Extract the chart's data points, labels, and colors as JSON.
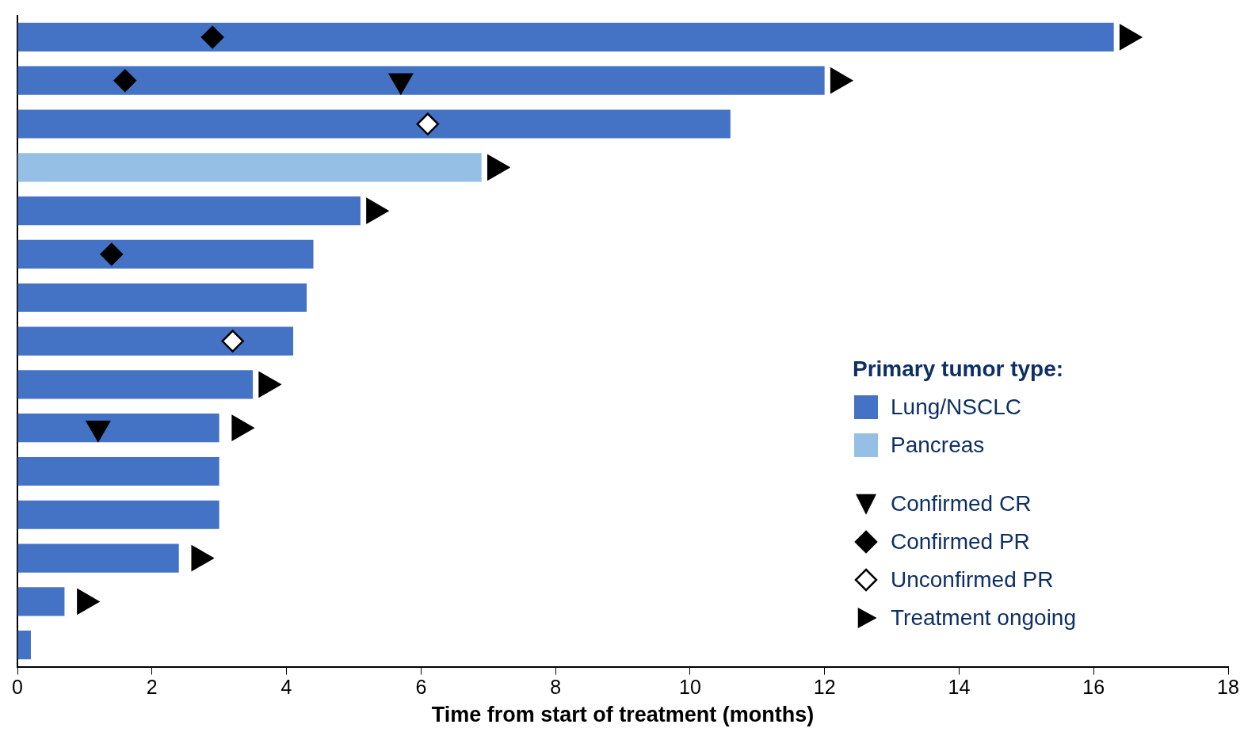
{
  "chart_data": {
    "type": "bar",
    "orientation": "horizontal",
    "categories": [
      null,
      null,
      null,
      null,
      null,
      null,
      null,
      null,
      null,
      null,
      null,
      null,
      null,
      null,
      null
    ],
    "xlabel": "Time from start of treatment (months)",
    "xlim": [
      0,
      18
    ],
    "xticks": [
      0,
      2,
      4,
      6,
      8,
      10,
      12,
      14,
      16,
      18
    ],
    "tick_labels": "x",
    "grid": false,
    "legend": "bottom right",
    "legend_title": "Primary tumor type:",
    "series": [
      {
        "name": "Lung/NSCLC",
        "color": "#4472c4",
        "values": [
          16.3,
          12.0,
          10.6,
          null,
          5.1,
          4.4,
          4.3,
          4.1,
          3.5,
          3.0,
          3.0,
          3.0,
          2.4,
          0.7,
          0.2
        ]
      },
      {
        "name": "Pancreas",
        "color": "#95bfe4",
        "values": [
          null,
          null,
          null,
          6.9,
          null,
          null,
          null,
          null,
          null,
          null,
          null,
          null,
          null,
          null,
          null
        ]
      },
      {
        "name": "Confirmed CR",
        "type": "scatter",
        "marker": "triangle-down",
        "color": "#000000",
        "values": [
          null,
          5.7,
          null,
          null,
          null,
          null,
          null,
          null,
          null,
          1.2,
          null,
          null,
          null,
          null,
          null
        ]
      },
      {
        "name": "Confirmed PR",
        "type": "scatter",
        "marker": "diamond",
        "color": "#000000",
        "values": [
          2.9,
          1.6,
          null,
          null,
          null,
          1.4,
          null,
          null,
          null,
          null,
          null,
          null,
          null,
          null,
          null
        ]
      },
      {
        "name": "Unconfirmed PR",
        "type": "scatter",
        "marker": "diamond",
        "color": "#ffffff",
        "values": [
          null,
          null,
          6.1,
          null,
          null,
          null,
          null,
          3.2,
          null,
          null,
          null,
          null,
          null,
          null,
          null
        ]
      },
      {
        "name": "Treatment ongoing",
        "type": "scatter",
        "marker": "triangle-right",
        "color": "#000000",
        "values": [
          16.5,
          12.2,
          null,
          7.1,
          5.3,
          null,
          null,
          null,
          3.7,
          3.3,
          null,
          null,
          2.7,
          1.0,
          null
        ]
      }
    ]
  }
}
